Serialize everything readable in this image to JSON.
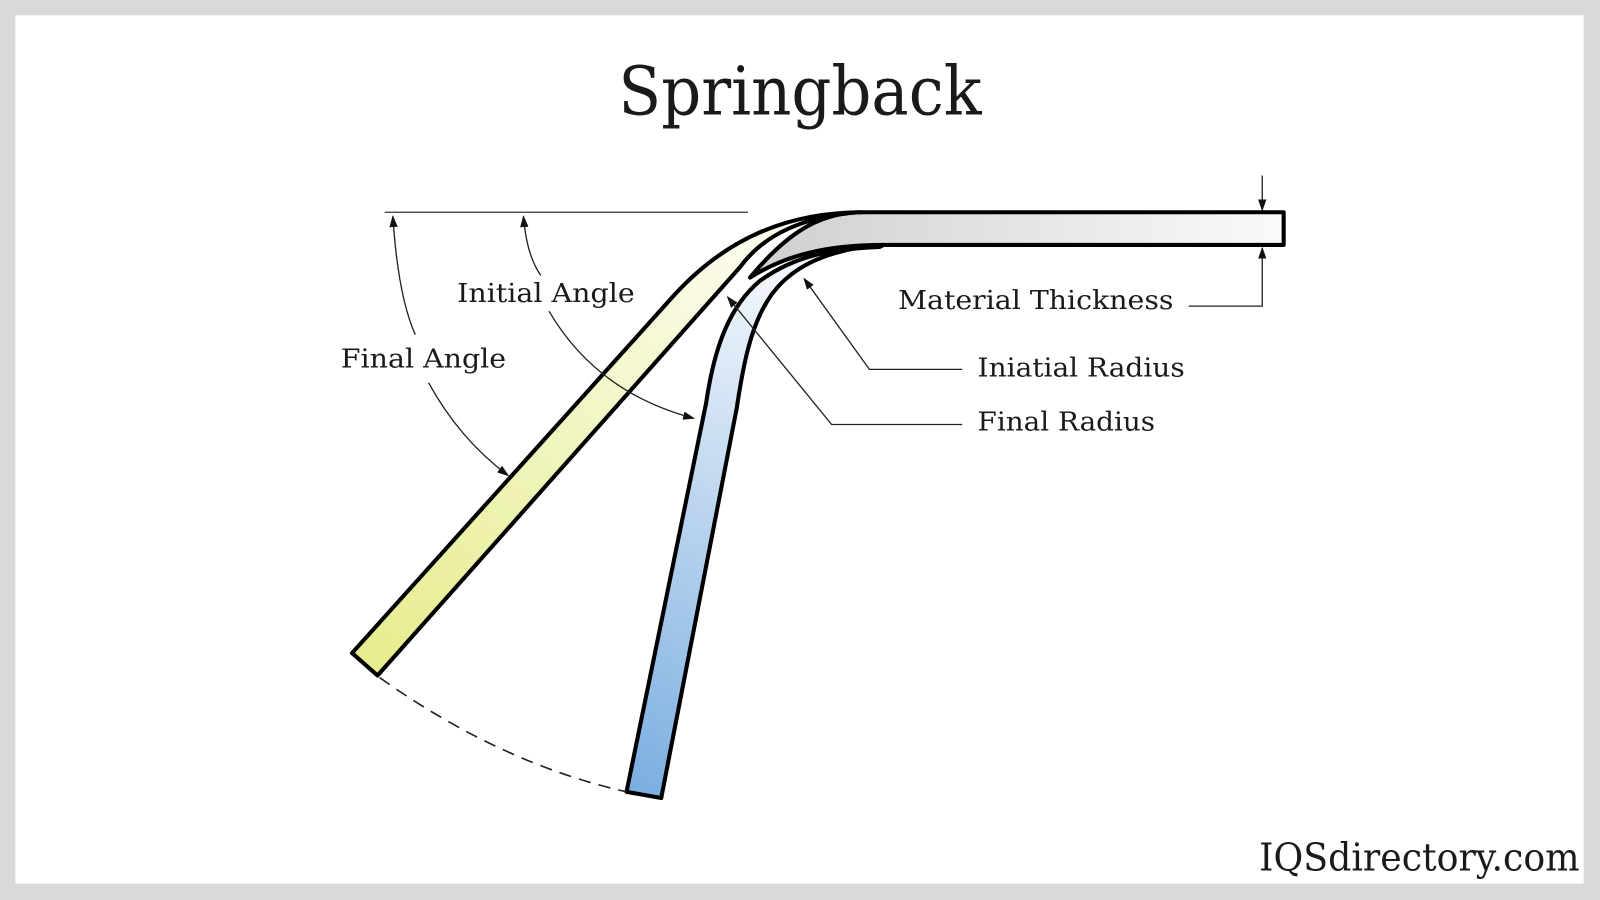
{
  "title": "Springback",
  "labels": {
    "initial_angle": "Initial Angle",
    "final_angle": "Final Angle",
    "material_thickness": "Material Thickness",
    "initial_radius": "Iniatial Radius",
    "final_radius": "Final Radius"
  },
  "watermark": "IQSdirectory.com",
  "colors": {
    "frame": "#d9d9d9",
    "background": "#ffffff",
    "final_position_strip": "#e6ec8a",
    "springback_strip": "#7fb0e0",
    "flat_bar": "#d6d6d6",
    "outline": "#000000"
  }
}
